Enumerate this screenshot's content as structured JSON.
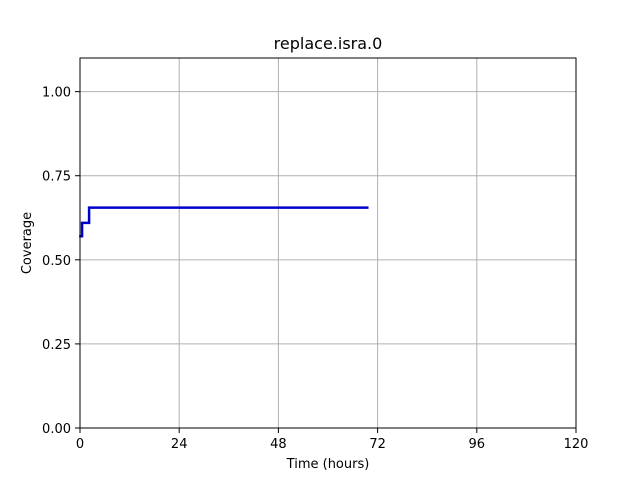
{
  "chart_data": {
    "type": "line",
    "title": "replace.isra.0",
    "xlabel": "Time (hours)",
    "ylabel": "Coverage",
    "xlim": [
      0,
      120
    ],
    "ylim": [
      0,
      1.1
    ],
    "xticks": [
      0,
      24,
      48,
      72,
      96,
      120
    ],
    "xtick_labels": [
      "0",
      "24",
      "48",
      "72",
      "96",
      "120"
    ],
    "yticks": [
      0.0,
      0.25,
      0.5,
      0.75,
      1.0
    ],
    "ytick_labels": [
      "0.00",
      "0.25",
      "0.50",
      "0.75",
      "1.00"
    ],
    "grid": true,
    "series": [
      {
        "color": "#0000cc",
        "x": [
          0.1,
          0.5,
          0.5,
          2.2,
          2.2,
          69.5
        ],
        "y": [
          0.57,
          0.57,
          0.61,
          0.61,
          0.655,
          0.655
        ]
      }
    ]
  }
}
